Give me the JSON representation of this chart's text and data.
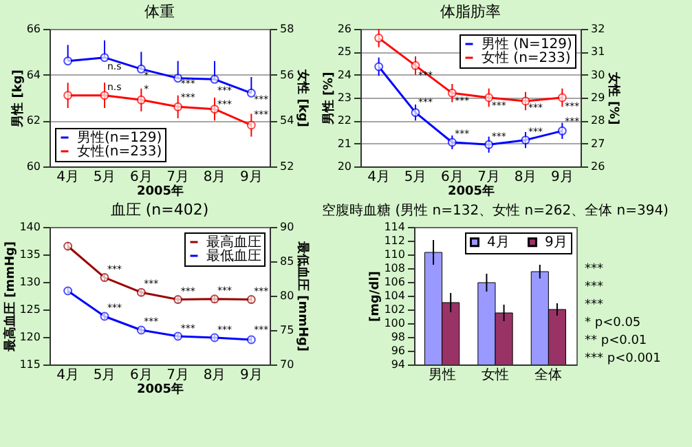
{
  "chart_data": [
    {
      "type": "line",
      "title": "体重",
      "xlabel": "2005年",
      "ylabel": "男性 [kg]",
      "y2label": "女性 [kg]",
      "categories": [
        "4月",
        "5月",
        "6月",
        "7月",
        "8月",
        "9月"
      ],
      "series": [
        {
          "name": "男性(n=129)",
          "color": "#0000ff",
          "values": [
            64.6,
            64.75,
            64.25,
            63.85,
            63.8,
            63.2
          ],
          "errors": [
            [
              64.6,
              65.3
            ],
            [
              64.75,
              65.5
            ],
            [
              64.25,
              65.0
            ],
            [
              63.85,
              64.6
            ],
            [
              63.8,
              64.6
            ],
            [
              63.2,
              63.9
            ]
          ]
        },
        {
          "name": "女性(n=233)",
          "color": "#ff0000",
          "axis": "y2",
          "values": [
            55.1,
            55.1,
            54.9,
            54.6,
            54.5,
            53.8
          ],
          "errors": [
            0.55,
            0.55,
            0.5,
            0.5,
            0.5,
            0.5
          ]
        }
      ],
      "ylim": [
        60,
        66
      ],
      "yticks": [
        60,
        62,
        64,
        66
      ],
      "y2lim": [
        52,
        58
      ],
      "y2ticks": [
        52,
        54,
        56,
        58
      ],
      "grid": "y",
      "legend": "bottom left",
      "marker": "circle",
      "annotations": [
        {
          "text": "n.s",
          "x": "5月",
          "y": 64.35
        },
        {
          "text": "*",
          "x": "6月",
          "y": 63.95
        },
        {
          "text": "***",
          "x": "7月",
          "y": 63.6
        },
        {
          "text": "***",
          "x": "8月",
          "y": 63.3
        },
        {
          "text": "***",
          "x": "9月",
          "y": 62.9
        },
        {
          "text": "n.s",
          "x": "5月",
          "y": 63.45
        },
        {
          "text": "*",
          "x": "6月",
          "y": 63.35
        },
        {
          "text": "***",
          "x": "7月",
          "y": 63.0
        },
        {
          "text": "***",
          "x": "8月",
          "y": 62.7
        },
        {
          "text": "***",
          "x": "9月",
          "y": 62.25
        }
      ]
    },
    {
      "type": "line",
      "title": "体脂肪率",
      "xlabel": "2005年",
      "ylabel": "男性 [%]",
      "y2label": "女性 [%]",
      "categories": [
        "4月",
        "5月",
        "6月",
        "7月",
        "8月",
        "9月"
      ],
      "series": [
        {
          "name": "男性 (N=129)",
          "color": "#0000ff",
          "values": [
            24.35,
            22.35,
            21.05,
            20.95,
            21.15,
            21.55
          ],
          "errors": [
            0.4,
            0.35,
            0.3,
            0.35,
            0.35,
            0.35
          ]
        },
        {
          "name": "女性 (n=233)",
          "color": "#ff0000",
          "axis": "y2",
          "values": [
            31.6,
            30.4,
            29.2,
            29.0,
            28.85,
            29.0
          ],
          "errors": [
            0.4,
            0.4,
            0.4,
            0.4,
            0.4,
            0.4
          ]
        }
      ],
      "ylim": [
        20,
        26
      ],
      "yticks": [
        20,
        21,
        22,
        23,
        24,
        25,
        26
      ],
      "y2lim": [
        26,
        32
      ],
      "y2ticks": [
        26,
        27,
        28,
        29,
        30,
        31,
        32
      ],
      "grid": "y",
      "legend": "top right",
      "marker": "circle",
      "annotations": [
        {
          "text": "***",
          "x": "5月",
          "y": 22.8
        },
        {
          "text": "***",
          "x": "6月",
          "y": 21.4
        },
        {
          "text": "***",
          "x": "7月",
          "y": 21.3
        },
        {
          "text": "***",
          "x": "8月",
          "y": 21.5
        },
        {
          "text": "***",
          "x": "9月",
          "y": 21.95
        },
        {
          "text": "***",
          "x": "5月",
          "y": 23.95
        },
        {
          "text": "***",
          "x": "6月",
          "y": 22.85
        },
        {
          "text": "***",
          "x": "7月",
          "y": 22.65
        },
        {
          "text": "***",
          "x": "8月",
          "y": 22.55
        },
        {
          "text": "***",
          "x": "9月",
          "y": 22.6
        }
      ]
    },
    {
      "type": "line",
      "title": "血圧 (n=402)",
      "xlabel": "2005年",
      "ylabel": "最高血圧 [mmHg]",
      "y2label": "最低血圧 [mmHg]",
      "categories": [
        "4月",
        "5月",
        "6月",
        "7月",
        "8月",
        "9月"
      ],
      "series": [
        {
          "name": "最高血圧",
          "color": "#990000",
          "values": [
            136.5,
            130.8,
            128.1,
            126.8,
            126.9,
            126.8
          ],
          "errors": [
            0.7,
            0.6,
            0.6,
            0.6,
            0.6,
            0.6
          ]
        },
        {
          "name": "最低血圧",
          "color": "#0000ff",
          "axis": "y2",
          "values": [
            80.7,
            77.0,
            75.0,
            74.1,
            73.9,
            73.6
          ],
          "errors": [
            0.4,
            0.4,
            0.4,
            0.4,
            0.4,
            0.4
          ]
        }
      ],
      "ylim": [
        115,
        140
      ],
      "yticks": [
        115,
        120,
        125,
        130,
        135,
        140
      ],
      "y2lim": [
        70,
        90
      ],
      "y2ticks": [
        70,
        75,
        80,
        85,
        90
      ],
      "legend": "top right",
      "marker": "circle",
      "annotations": [
        {
          "text": "***",
          "x": "5月",
          "y": 132.3
        },
        {
          "text": "***",
          "x": "6月",
          "y": 129.6
        },
        {
          "text": "***",
          "x": "7月",
          "y": 128.3
        },
        {
          "text": "***",
          "x": "8月",
          "y": 128.4
        },
        {
          "text": "***",
          "x": "9月",
          "y": 128.3
        },
        {
          "text": "***",
          "x": "5月",
          "y": 125.3
        },
        {
          "text": "***",
          "x": "6月",
          "y": 122.8
        },
        {
          "text": "***",
          "x": "7月",
          "y": 121.5
        },
        {
          "text": "***",
          "x": "8月",
          "y": 121.2
        },
        {
          "text": "***",
          "x": "9月",
          "y": 121.2
        }
      ]
    },
    {
      "type": "bar",
      "title": "空腹時血糖 (男性 n=132、女性 n=262、全体 n=394)",
      "ylabel": "[mg/dl]",
      "categories": [
        "男性",
        "女性",
        "全体"
      ],
      "series": [
        {
          "name": "4月",
          "color": "#9999ff",
          "values": [
            110.3,
            105.9,
            107.5
          ],
          "errors": [
            1.8,
            1.3,
            1.0
          ]
        },
        {
          "name": "9月",
          "color": "#993366",
          "values": [
            103.0,
            101.5,
            102.0
          ],
          "errors": [
            1.4,
            1.2,
            0.9
          ]
        }
      ],
      "ylim": [
        94,
        114
      ],
      "yticks": [
        94,
        96,
        98,
        100,
        102,
        104,
        106,
        108,
        110,
        112,
        114
      ],
      "legend": "top right",
      "annotations": [
        "***",
        "***",
        "***",
        "* p<0.05",
        "** p<0.01",
        "*** p<0.001"
      ]
    }
  ]
}
